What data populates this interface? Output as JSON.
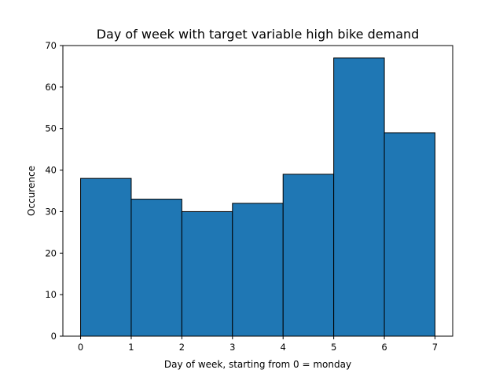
{
  "chart_data": {
    "type": "bar",
    "title": "Day of week with target variable high bike demand",
    "xlabel": "Day of week, starting from 0 = monday",
    "ylabel": "Occurence",
    "bins": [
      {
        "start": 0,
        "end": 1,
        "value": 38
      },
      {
        "start": 1,
        "end": 2,
        "value": 33
      },
      {
        "start": 2,
        "end": 3,
        "value": 30
      },
      {
        "start": 3,
        "end": 4,
        "value": 32
      },
      {
        "start": 4,
        "end": 5,
        "value": 39
      },
      {
        "start": 5,
        "end": 6,
        "value": 67
      },
      {
        "start": 6,
        "end": 7,
        "value": 49
      }
    ],
    "xlim": [
      -0.35,
      7.35
    ],
    "ylim": [
      0,
      70
    ],
    "xticks": [
      "0",
      "1",
      "2",
      "3",
      "4",
      "5",
      "6",
      "7"
    ],
    "yticks": [
      "0",
      "10",
      "20",
      "30",
      "40",
      "50",
      "60",
      "70"
    ],
    "bar_color": "#1f77b4",
    "edge_color": "#000000",
    "grid": false,
    "legend": "none"
  }
}
